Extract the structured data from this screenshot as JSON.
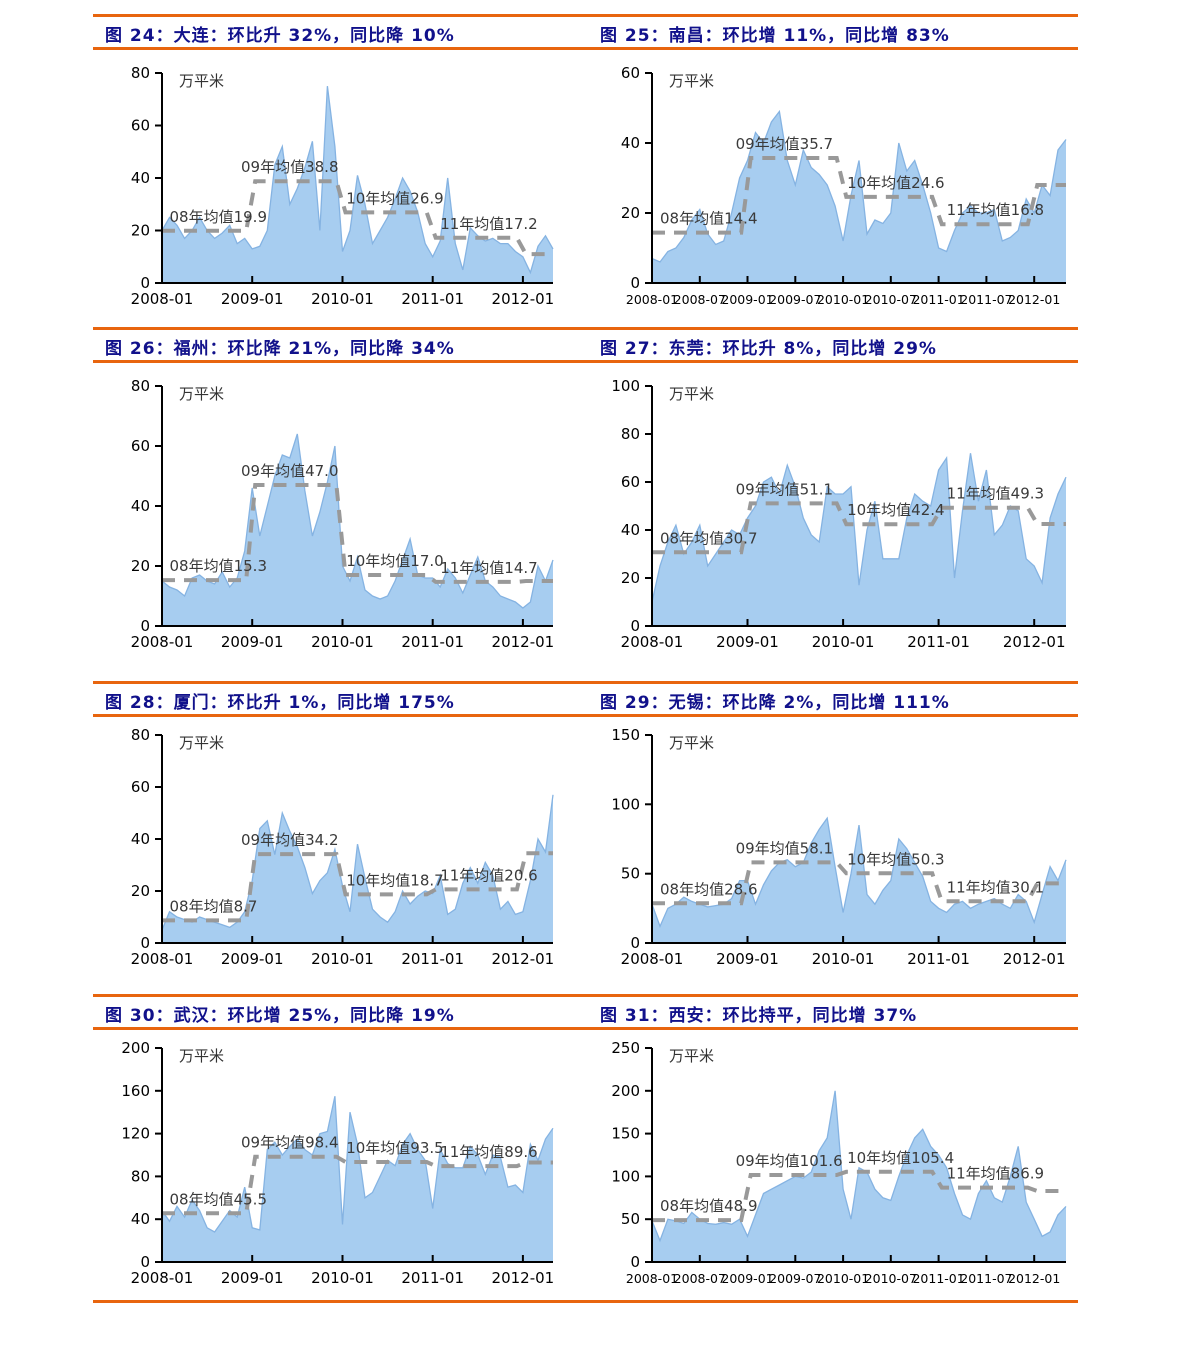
{
  "page": {
    "unit_label": "万平米",
    "colors": {
      "accent_orange": "#E8650E",
      "title_navy": "#11118B",
      "area_fill": "#A7CDF0",
      "area_edge": "#85B3E2",
      "mean_line_gray": "#999999",
      "axis_black": "#000000"
    }
  },
  "chart_data": [
    {
      "id": "fig24",
      "figure_label": "图 24",
      "city": "大连",
      "title": "图 24：大连：环比升 32%，同比降 10%",
      "type": "area",
      "unit": "万平米",
      "x_start": "2008-01",
      "x_end": "2012-05",
      "x_tick_labels": [
        "2008-01",
        "2009-01",
        "2010-01",
        "2011-01",
        "2012-01"
      ],
      "ylim": [
        0,
        80
      ],
      "y_ticks": [
        0,
        20,
        40,
        60,
        80
      ],
      "annotations": [
        "08年均值19.9",
        "09年均值38.8",
        "10年均值26.9",
        "11年均值17.2"
      ],
      "means": {
        "y2008": 19.9,
        "y2009": 38.8,
        "y2010": 26.9,
        "y2011": 17.2,
        "y2012_partial": 11
      },
      "values": [
        20,
        25,
        22,
        17,
        20,
        25,
        20,
        17,
        19,
        22,
        15,
        17,
        13,
        14,
        20,
        45,
        52,
        30,
        36,
        44,
        54,
        20,
        75,
        52,
        12,
        20,
        41,
        30,
        15,
        20,
        25,
        32,
        40,
        35,
        27,
        15,
        10,
        16,
        40,
        15,
        5,
        21,
        18,
        16,
        17,
        15,
        15,
        12,
        10,
        4,
        14,
        18,
        13
      ]
    },
    {
      "id": "fig25",
      "figure_label": "图 25",
      "city": "南昌",
      "title": "图 25：南昌：环比增 11%，同比增 83%",
      "type": "area",
      "unit": "万平米",
      "x_start": "2008-01",
      "x_end": "2012-05",
      "x_tick_labels": [
        "2008-01",
        "2008-07",
        "2009-01",
        "2009-07",
        "2010-01",
        "2010-07",
        "2011-01",
        "2011-07",
        "2012-01"
      ],
      "ylim": [
        0,
        60
      ],
      "y_ticks": [
        0,
        20,
        40,
        60
      ],
      "annotations": [
        "08年均值14.4",
        "09年均值35.7",
        "10年均值24.6",
        "11年均值16.8"
      ],
      "means": {
        "y2008": 14.4,
        "y2009": 35.7,
        "y2010": 24.6,
        "y2011": 16.8,
        "y2012_partial": 28
      },
      "values": [
        7,
        6,
        9,
        10,
        13,
        18,
        21,
        14,
        11,
        12,
        20,
        30,
        35,
        43,
        40,
        46,
        49,
        35,
        28,
        38,
        33,
        31,
        28,
        22,
        12,
        25,
        35,
        14,
        18,
        17,
        20,
        40,
        32,
        35,
        28,
        20,
        10,
        9,
        15,
        20,
        22,
        20,
        20,
        21,
        12,
        13,
        15,
        24,
        20,
        28,
        25,
        38,
        41
      ]
    },
    {
      "id": "fig26",
      "figure_label": "图 26",
      "city": "福州",
      "title": "图 26：福州：环比降 21%，同比降 34%",
      "type": "area",
      "unit": "万平米",
      "x_start": "2008-01",
      "x_end": "2012-05",
      "x_tick_labels": [
        "2008-01",
        "2009-01",
        "2010-01",
        "2011-01",
        "2012-01"
      ],
      "ylim": [
        0,
        80
      ],
      "y_ticks": [
        0,
        20,
        40,
        60,
        80
      ],
      "annotations": [
        "08年均值15.3",
        "09年均值47.0",
        "10年均值17.0",
        "11年均值14.7"
      ],
      "means": {
        "y2008": 15.3,
        "y2009": 47.0,
        "y2010": 17.0,
        "y2011": 14.7,
        "y2012_partial": 15
      },
      "values": [
        15,
        13,
        12,
        10,
        16,
        17,
        15,
        14,
        18,
        13,
        16,
        25,
        46,
        30,
        40,
        50,
        57,
        56,
        64,
        45,
        30,
        38,
        48,
        60,
        20,
        15,
        23,
        12,
        10,
        9,
        10,
        15,
        22,
        29,
        17,
        16,
        16,
        13,
        19,
        16,
        11,
        17,
        23,
        15,
        13,
        10,
        9,
        8,
        6,
        8,
        20,
        15,
        22
      ]
    },
    {
      "id": "fig27",
      "figure_label": "图 27",
      "city": "东莞",
      "title": "图 27：东莞：环比升 8%，同比增 29%",
      "type": "area",
      "unit": "万平米",
      "x_start": "2008-01",
      "x_end": "2012-05",
      "x_tick_labels": [
        "2008-01",
        "2009-01",
        "2010-01",
        "2011-01",
        "2012-01"
      ],
      "ylim": [
        0,
        100
      ],
      "y_ticks": [
        0,
        20,
        40,
        60,
        80,
        100
      ],
      "annotations": [
        "08年均值30.7",
        "09年均值51.1",
        "10年均值42.4",
        "11年均值49.3"
      ],
      "means": {
        "y2008": 30.7,
        "y2009": 51.1,
        "y2010": 42.4,
        "y2011": 49.3,
        "y2012_partial": 42.5
      },
      "values": [
        10,
        25,
        35,
        42,
        30,
        35,
        42,
        25,
        30,
        35,
        40,
        38,
        45,
        50,
        60,
        62,
        55,
        67,
        58,
        45,
        38,
        35,
        58,
        55,
        55,
        58,
        17,
        40,
        52,
        28,
        28,
        28,
        45,
        55,
        52,
        50,
        65,
        70,
        20,
        48,
        72,
        52,
        65,
        38,
        42,
        50,
        48,
        28,
        25,
        18,
        45,
        55,
        62
      ]
    },
    {
      "id": "fig28",
      "figure_label": "图 28",
      "city": "厦门",
      "title": "图 28：厦门：环比升 1%，同比增 175%",
      "type": "area",
      "unit": "万平米",
      "x_start": "2008-01",
      "x_end": "2012-05",
      "x_tick_labels": [
        "2008-01",
        "2009-01",
        "2010-01",
        "2011-01",
        "2012-01"
      ],
      "ylim": [
        0,
        80
      ],
      "y_ticks": [
        0,
        20,
        40,
        60,
        80
      ],
      "annotations": [
        "08年均值8.7",
        "09年均值34.2",
        "10年均值18.7",
        "11年均值20.6"
      ],
      "means": {
        "y2008": 8.7,
        "y2009": 34.2,
        "y2010": 18.7,
        "y2011": 20.6,
        "y2012_partial": 34.5
      },
      "values": [
        5,
        12,
        10,
        9,
        8,
        10,
        9,
        8,
        7,
        6,
        8,
        12,
        24,
        44,
        47,
        34,
        50,
        43,
        37,
        29,
        19,
        24,
        27,
        36,
        22,
        12,
        38,
        25,
        13,
        10,
        8,
        12,
        20,
        15,
        18,
        20,
        19,
        26,
        11,
        13,
        23,
        29,
        23,
        31,
        26,
        13,
        16,
        11,
        12,
        24,
        40,
        35,
        57
      ]
    },
    {
      "id": "fig29",
      "figure_label": "图 29",
      "city": "无锡",
      "title": "图 29：无锡：环比降 2%，同比增 111%",
      "type": "area",
      "unit": "万平米",
      "x_start": "2008-01",
      "x_end": "2012-05",
      "x_tick_labels": [
        "2008-01",
        "2009-01",
        "2010-01",
        "2011-01",
        "2012-01"
      ],
      "ylim": [
        0,
        150
      ],
      "y_ticks": [
        0,
        50,
        100,
        150
      ],
      "annotations": [
        "08年均值28.6",
        "09年均值58.1",
        "10年均值50.3",
        "11年均值30.1"
      ],
      "means": {
        "y2008": 28.6,
        "y2009": 58.1,
        "y2010": 50.3,
        "y2011": 30.1,
        "y2012_partial": 43
      },
      "values": [
        28,
        12,
        25,
        28,
        33,
        30,
        28,
        26,
        27,
        28,
        32,
        45,
        45,
        28,
        42,
        52,
        58,
        60,
        55,
        58,
        72,
        82,
        90,
        55,
        22,
        50,
        85,
        35,
        28,
        38,
        45,
        75,
        68,
        58,
        48,
        30,
        25,
        22,
        28,
        30,
        25,
        28,
        30,
        32,
        28,
        25,
        35,
        30,
        15,
        35,
        55,
        45,
        60
      ]
    },
    {
      "id": "fig30",
      "figure_label": "图 30",
      "city": "武汉",
      "title": "图 30：武汉：环比增 25%，同比降 19%",
      "type": "area",
      "unit": "万平米",
      "x_start": "2008-01",
      "x_end": "2012-05",
      "x_tick_labels": [
        "2008-01",
        "2009-01",
        "2010-01",
        "2011-01",
        "2012-01"
      ],
      "ylim": [
        0,
        200
      ],
      "y_ticks": [
        0,
        40,
        80,
        120,
        160,
        200
      ],
      "annotations": [
        "08年均值45.5",
        "09年均值98.4",
        "10年均值93.5",
        "11年均值89.6"
      ],
      "means": {
        "y2008": 45.5,
        "y2009": 98.4,
        "y2010": 93.5,
        "y2011": 89.6,
        "y2012_partial": 93
      },
      "values": [
        48,
        38,
        52,
        42,
        58,
        48,
        32,
        28,
        38,
        48,
        42,
        70,
        32,
        30,
        105,
        112,
        100,
        108,
        115,
        105,
        100,
        120,
        122,
        155,
        35,
        140,
        110,
        60,
        65,
        80,
        95,
        90,
        110,
        120,
        105,
        95,
        50,
        105,
        92,
        88,
        88,
        108,
        100,
        82,
        100,
        98,
        70,
        72,
        65,
        110,
        95,
        115,
        125
      ]
    },
    {
      "id": "fig31",
      "figure_label": "图 31",
      "city": "西安",
      "title": "图 31：西安：环比持平，同比增 37%",
      "type": "area",
      "unit": "万平米",
      "x_start": "2008-01",
      "x_end": "2012-05",
      "x_tick_labels": [
        "2008-01",
        "2008-07",
        "2009-01",
        "2009-07",
        "2010-01",
        "2010-07",
        "2011-01",
        "2011-07",
        "2012-01"
      ],
      "ylim": [
        0,
        250
      ],
      "y_ticks": [
        0,
        50,
        100,
        150,
        200,
        250
      ],
      "annotations": [
        "08年均值48.9",
        "09年均值101.6",
        "10年均值105.4",
        "11年均值86.9"
      ],
      "means": {
        "y2008": 48.9,
        "y2009": 101.6,
        "y2010": 105.4,
        "y2011": 86.9,
        "y2012_partial": 83
      },
      "values": [
        48,
        25,
        50,
        48,
        45,
        58,
        50,
        45,
        44,
        46,
        44,
        50,
        30,
        55,
        80,
        85,
        90,
        95,
        100,
        98,
        105,
        130,
        145,
        200,
        85,
        50,
        110,
        105,
        85,
        75,
        72,
        100,
        125,
        145,
        155,
        135,
        125,
        110,
        80,
        55,
        50,
        80,
        95,
        75,
        70,
        100,
        135,
        70,
        50,
        30,
        35,
        55,
        65
      ]
    }
  ]
}
